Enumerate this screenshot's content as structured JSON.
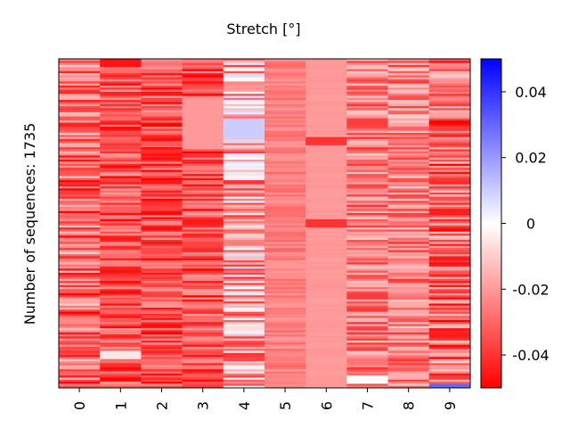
{
  "chart_data": {
    "type": "heatmap",
    "title": "Stretch [°]",
    "ylabel": "Number of sequences: 1735",
    "xlabel": "",
    "columns": [
      "0",
      "1",
      "2",
      "3",
      "4",
      "5",
      "6",
      "7",
      "8",
      "9"
    ],
    "rows": 1735,
    "colorbar": {
      "range": [
        -0.05,
        0.05
      ],
      "ticks": [
        "0.04",
        "0.02",
        "0",
        "-0.02",
        "-0.04"
      ],
      "tick_values": [
        0.04,
        0.02,
        0,
        -0.02,
        -0.04
      ],
      "colors": {
        "low": "#ff0000",
        "mid": "#ffffff",
        "high": "#0000ff"
      }
    },
    "column_profiles": [
      {
        "typical_range": [
          -0.05,
          -0.01
        ]
      },
      {
        "typical_range": [
          -0.05,
          -0.02
        ],
        "notable_light_band_near_row": 1560
      },
      {
        "typical_range": [
          -0.05,
          -0.02
        ]
      },
      {
        "typical_range": [
          -0.05,
          -0.02
        ],
        "light_block_rows": [
          200,
          470
        ]
      },
      {
        "typical_range": [
          -0.04,
          0.01
        ],
        "positive_block_rows": [
          310,
          420
        ]
      },
      {
        "typical_range": [
          -0.03,
          -0.02
        ]
      },
      {
        "typical_value": -0.02,
        "dark_lines_rows": [
          425,
          860
        ]
      },
      {
        "typical_range": [
          -0.04,
          -0.01
        ],
        "white_block_rows": [
          1660,
          1710
        ]
      },
      {
        "typical_range": [
          -0.04,
          -0.01
        ]
      },
      {
        "typical_range": [
          -0.05,
          -0.01
        ],
        "blue_line_near_row": 1720
      }
    ]
  }
}
